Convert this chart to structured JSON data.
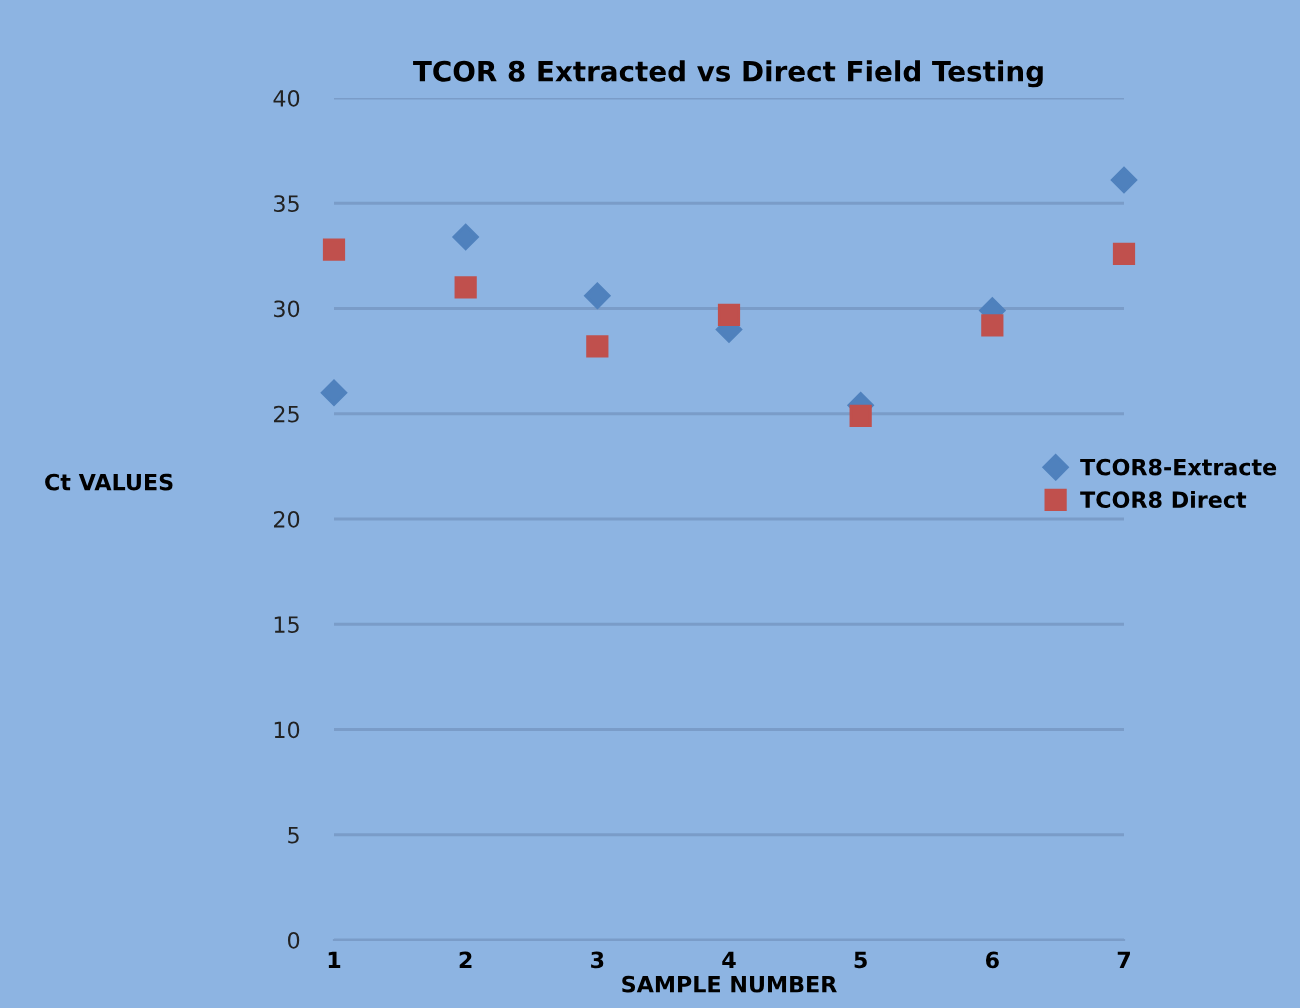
{
  "chart_data": {
    "type": "scatter",
    "title": "TCOR 8 Extracted vs Direct Field Testing",
    "xlabel": "SAMPLE NUMBER",
    "ylabel": "Ct VALUES",
    "x": [
      1,
      2,
      3,
      4,
      5,
      6,
      7
    ],
    "series": [
      {
        "name": "TCOR8-Extracte",
        "color": "#4f81bd",
        "marker": "diamond",
        "values": [
          26.0,
          33.4,
          30.6,
          29.0,
          25.4,
          29.9,
          36.1
        ]
      },
      {
        "name": "TCOR8 Direct",
        "color": "#c0504d",
        "marker": "square",
        "values": [
          32.8,
          31.0,
          28.2,
          29.7,
          24.9,
          29.2,
          32.6
        ]
      }
    ],
    "xlim": [
      1,
      7
    ],
    "xticks": [
      1,
      2,
      3,
      4,
      5,
      6,
      7
    ],
    "ylim": [
      0,
      40
    ],
    "yticks": [
      0,
      5,
      10,
      15,
      20,
      25,
      30,
      35,
      40
    ],
    "grid": "y",
    "legend": "right"
  }
}
